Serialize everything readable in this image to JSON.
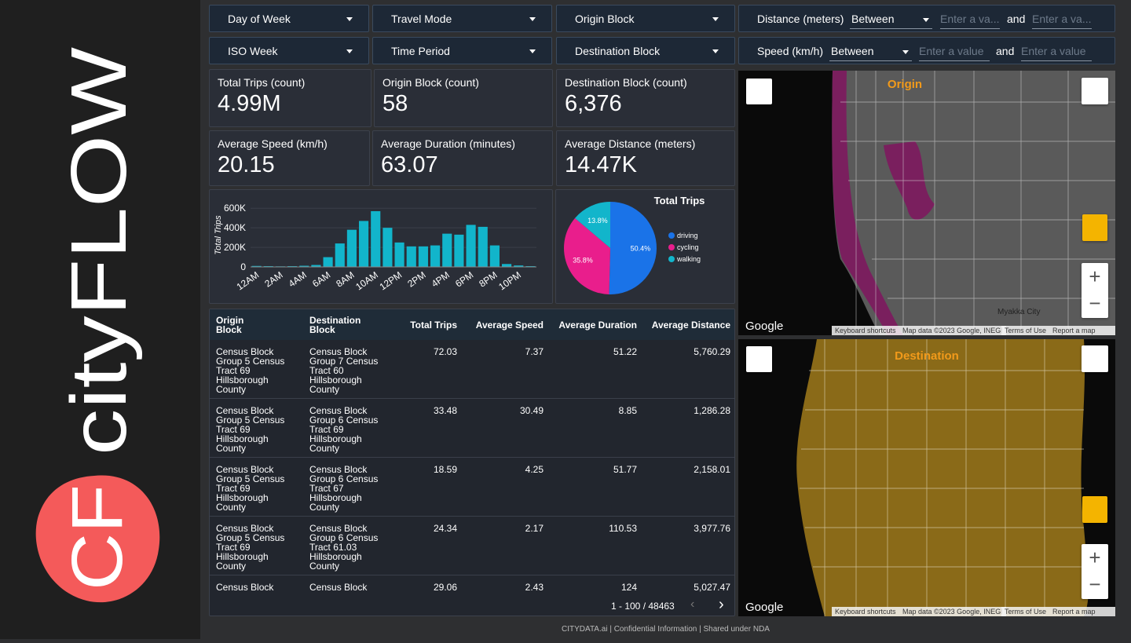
{
  "logo": {
    "word": "cityFLOW",
    "mark": "CF"
  },
  "filters": [
    "Day of Week",
    "Travel Mode",
    "Origin Block",
    "ISO Week",
    "Time Period",
    "Destination Block"
  ],
  "range_filters": [
    {
      "label": "Distance (meters)",
      "operator": "Between",
      "min_placeholder": "Enter a va...",
      "joiner": "and",
      "max_placeholder": "Enter a va..."
    },
    {
      "label": "Speed (km/h)",
      "operator": "Between",
      "min_placeholder": "Enter a value",
      "joiner": "and",
      "max_placeholder": "Enter a value"
    }
  ],
  "kpis": [
    {
      "label": "Total Trips (count)",
      "value": "4.99M"
    },
    {
      "label": "Origin Block (count)",
      "value": "58"
    },
    {
      "label": "Destination Block (count)",
      "value": "6,376"
    },
    {
      "label": "Average Speed (km/h)",
      "value": "20.15"
    },
    {
      "label": "Average Duration (minutes)",
      "value": "63.07"
    },
    {
      "label": "Average Distance (meters)",
      "value": "14.47K"
    }
  ],
  "chart_data": [
    {
      "type": "bar",
      "y_label": "Total Trips",
      "color": "#12b5cb",
      "categories": [
        "12AM",
        null,
        "2AM",
        null,
        "4AM",
        null,
        "6AM",
        null,
        "8AM",
        null,
        "10AM",
        null,
        "12PM",
        null,
        "2PM",
        null,
        "4PM",
        null,
        "6PM",
        null,
        "8PM",
        null,
        "10PM",
        null
      ],
      "values": [
        10000,
        8000,
        6000,
        8000,
        12000,
        20000,
        100000,
        240000,
        380000,
        470000,
        570000,
        400000,
        250000,
        210000,
        210000,
        220000,
        340000,
        330000,
        430000,
        410000,
        220000,
        30000,
        15000,
        8000
      ],
      "ylim": [
        0,
        650000
      ],
      "yticks": [
        0,
        {
          "value": 200000,
          "label": "200K"
        },
        {
          "value": 400000,
          "label": "400K"
        },
        {
          "value": 600000,
          "label": "600K"
        }
      ]
    },
    {
      "type": "pie",
      "title": "Total Trips",
      "categories": [
        "driving",
        "cycling",
        "walking"
      ],
      "values": [
        50.4,
        35.8,
        13.8
      ],
      "value_labels": [
        "50.4%",
        "35.8%",
        "13.8%"
      ],
      "colors": [
        "#1a73e8",
        "#e91e8c",
        "#12b5cb"
      ]
    }
  ],
  "table": {
    "columns": [
      "Origin Block",
      "Destination Block",
      "Total Trips",
      "Average Speed",
      "Average Duration",
      "Average Distance"
    ],
    "rows": [
      [
        "Census Block Group 5 Census Tract 69 Hillsborough County",
        "Census Block Group 7 Census Tract 60 Hillsborough County",
        "72.03",
        "7.37",
        "51.22",
        "5,760.29"
      ],
      [
        "Census Block Group 5 Census Tract 69 Hillsborough County",
        "Census Block Group 6 Census Tract 69 Hillsborough County",
        "33.48",
        "30.49",
        "8.85",
        "1,286.28"
      ],
      [
        "Census Block Group 5 Census Tract 69 Hillsborough County",
        "Census Block Group 6 Census Tract 67 Hillsborough County",
        "18.59",
        "4.25",
        "51.77",
        "2,158.01"
      ],
      [
        "Census Block Group 5 Census Tract 69 Hillsborough County",
        "Census Block Group 6 Census Tract 61.03 Hillsborough County",
        "24.34",
        "2.17",
        "110.53",
        "3,977.76"
      ],
      [
        "Census Block",
        "Census Block",
        "29.06",
        "2.43",
        "124",
        "5,027.47"
      ]
    ],
    "pagination": "1 - 100 / 48463"
  },
  "maps": [
    {
      "title": "Origin",
      "brand": "Google",
      "shortcuts": "Keyboard shortcuts",
      "attribution": "Map data ©2023 Google, INEGI",
      "terms": "Terms of Use",
      "report": "Report a map error",
      "places": [
        "Myakka City"
      ]
    },
    {
      "title": "Destination",
      "brand": "Google",
      "shortcuts": "Keyboard shortcuts",
      "attribution": "Map data ©2023 Google, INEGI",
      "terms": "Terms of Use",
      "report": "Report a map error",
      "places": []
    }
  ],
  "footer": "CITYDATA.ai | Confidential Information | Shared under NDA"
}
